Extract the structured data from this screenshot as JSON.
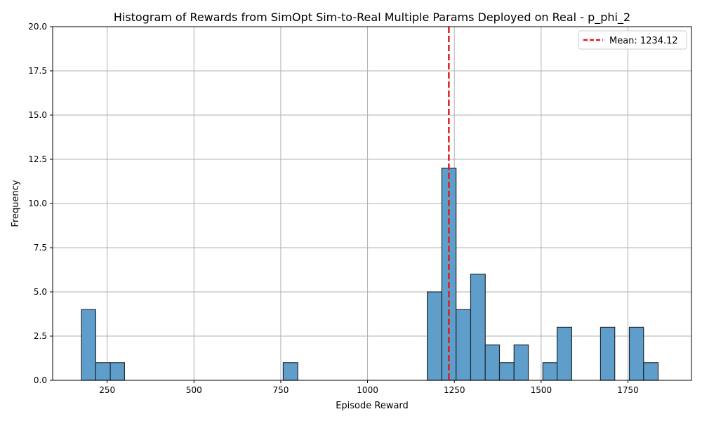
{
  "chart_data": {
    "type": "bar",
    "title": "Histogram of Rewards from SimOpt Sim-to-Real Multiple Params Deployed on Real - p_phi_2",
    "xlabel": "Episode Reward",
    "ylabel": "Frequency",
    "xlim": [
      93,
      1933
    ],
    "ylim": [
      0,
      20
    ],
    "xticks": [
      "250",
      "500",
      "750",
      "1000",
      "1250",
      "1500",
      "1750"
    ],
    "xtick_values": [
      250,
      500,
      750,
      1000,
      1250,
      1500,
      1750
    ],
    "yticks": [
      "0.0",
      "2.5",
      "5.0",
      "7.5",
      "10.0",
      "12.5",
      "15.0",
      "17.5",
      "20.0"
    ],
    "ytick_values": [
      0,
      2.5,
      5,
      7.5,
      10,
      12.5,
      15,
      17.5,
      20
    ],
    "grid": true,
    "bar_color": "#5f9ecb",
    "mean_line_color": "#e31a1c",
    "legend_position": "top-right",
    "legend": {
      "label": "Mean: 1234.12"
    },
    "mean": 1234.12,
    "bins": [
      {
        "start": 176,
        "end": 217,
        "count": 4
      },
      {
        "start": 217,
        "end": 259,
        "count": 1
      },
      {
        "start": 259,
        "end": 300,
        "count": 1
      },
      {
        "start": 757,
        "end": 799,
        "count": 1
      },
      {
        "start": 1172,
        "end": 1214,
        "count": 5
      },
      {
        "start": 1214,
        "end": 1255,
        "count": 12
      },
      {
        "start": 1255,
        "end": 1297,
        "count": 4
      },
      {
        "start": 1297,
        "end": 1339,
        "count": 6
      },
      {
        "start": 1339,
        "end": 1380,
        "count": 2
      },
      {
        "start": 1380,
        "end": 1422,
        "count": 1
      },
      {
        "start": 1422,
        "end": 1463,
        "count": 2
      },
      {
        "start": 1505,
        "end": 1546,
        "count": 1
      },
      {
        "start": 1546,
        "end": 1588,
        "count": 3
      },
      {
        "start": 1671,
        "end": 1712,
        "count": 3
      },
      {
        "start": 1754,
        "end": 1795,
        "count": 3
      },
      {
        "start": 1795,
        "end": 1837,
        "count": 1
      }
    ]
  }
}
